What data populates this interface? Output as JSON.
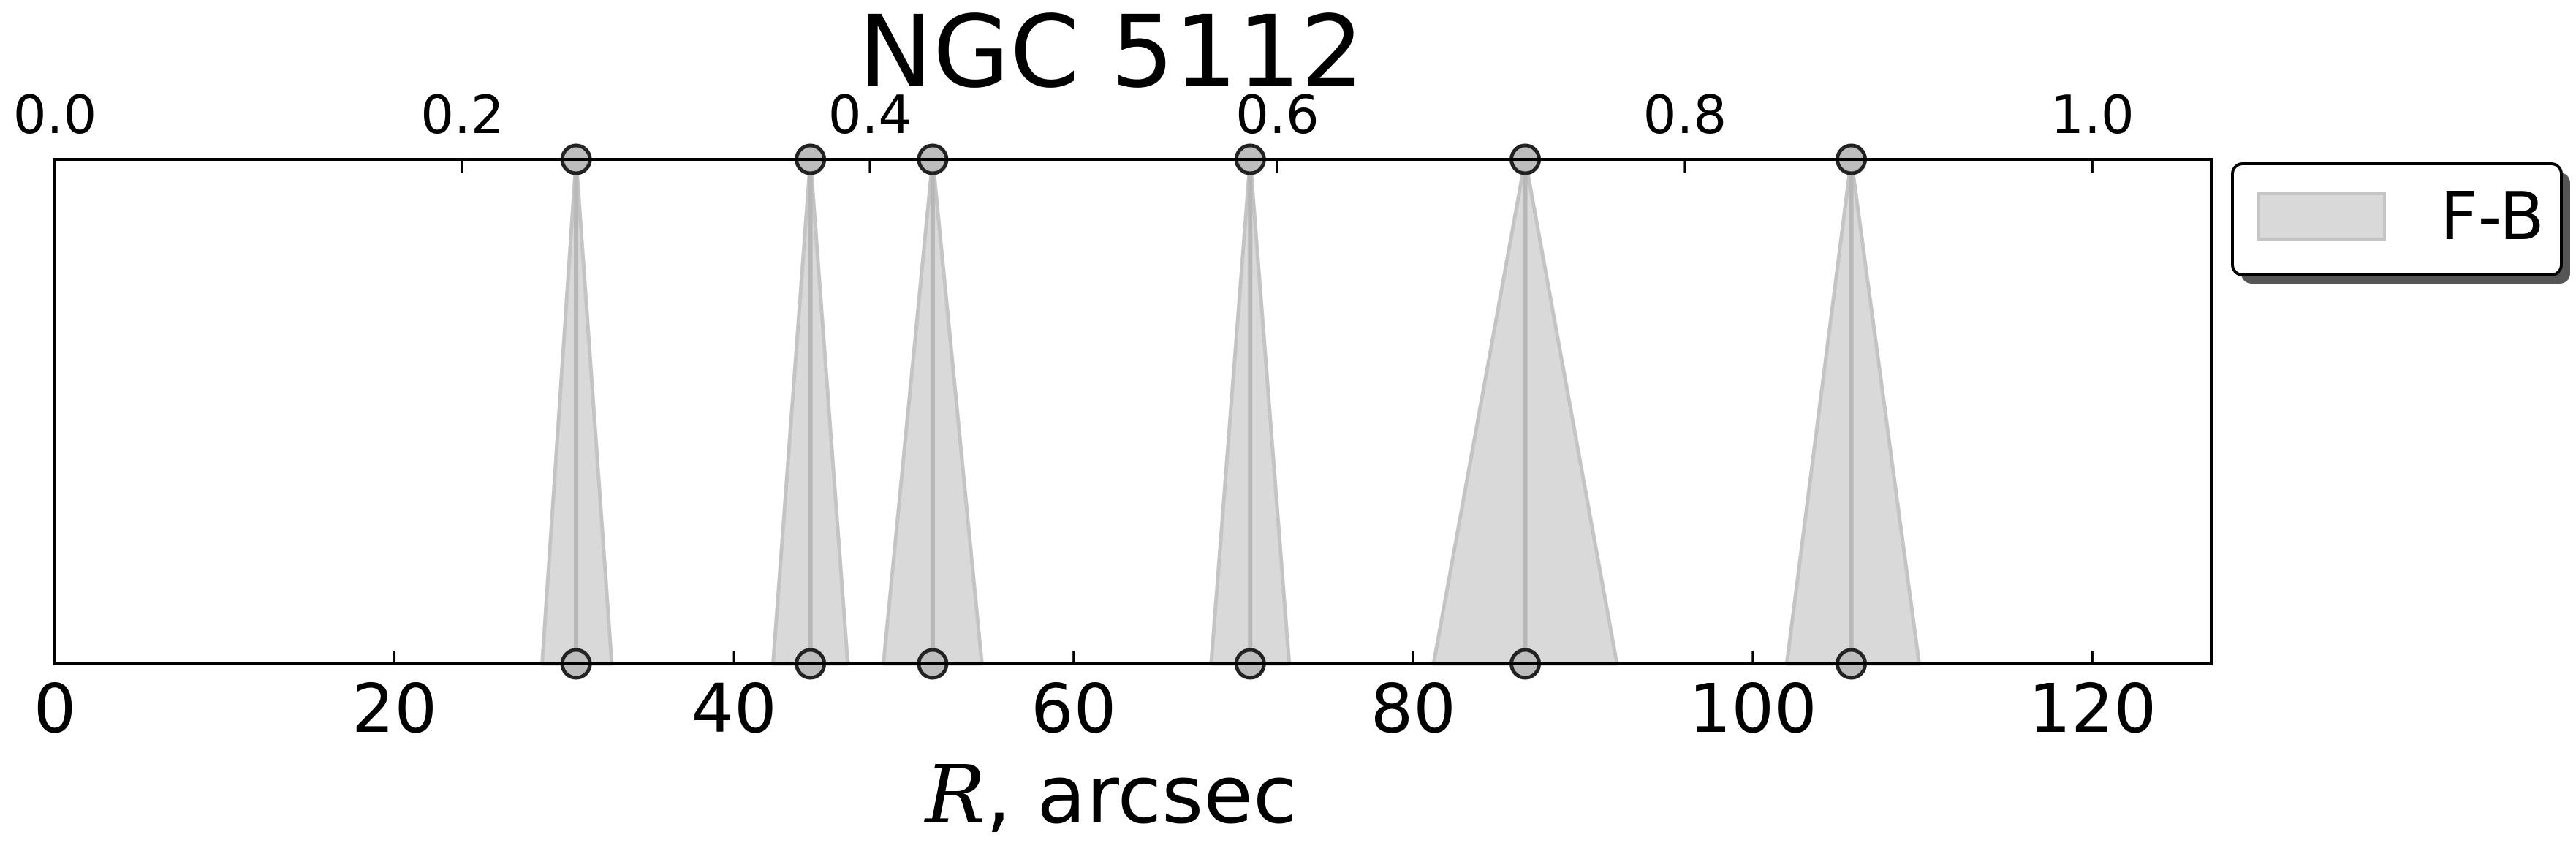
{
  "chart_data": {
    "type": "scatter",
    "title": "NGC 5112",
    "xlabel_symbol": "R",
    "xlabel_rest": ", arcsec",
    "xlim": [
      0,
      127
    ],
    "xticks": [
      0,
      20,
      40,
      60,
      80,
      100,
      120
    ],
    "top_axis": {
      "ticks": [
        "0.0",
        "0.2",
        "0.4",
        "0.6",
        "0.8",
        "1.0"
      ],
      "tick_positions_data": [
        0,
        24,
        48,
        72,
        96,
        120
      ]
    },
    "ylim": [
      0,
      1
    ],
    "grid": false,
    "legend": {
      "position": "outside-right-top",
      "entries": [
        "F-B"
      ]
    },
    "series": [
      {
        "name": "F-B",
        "points": [
          {
            "x": 30.7,
            "lower": 28.7,
            "upper": 32.8
          },
          {
            "x": 44.5,
            "lower": 42.3,
            "upper": 46.7
          },
          {
            "x": 51.7,
            "lower": 48.8,
            "upper": 54.6
          },
          {
            "x": 70.4,
            "lower": 68.1,
            "upper": 72.7
          },
          {
            "x": 86.6,
            "lower": 81.2,
            "upper": 92.0
          },
          {
            "x": 105.8,
            "lower": 102.0,
            "upper": 109.8
          }
        ]
      }
    ],
    "colors": {
      "fill": "#d9d9d9",
      "edge": "#c4c4c4",
      "line": "#b7b7b7",
      "marker_fill": "#bdbdbd",
      "marker_edge": "#222222"
    }
  }
}
